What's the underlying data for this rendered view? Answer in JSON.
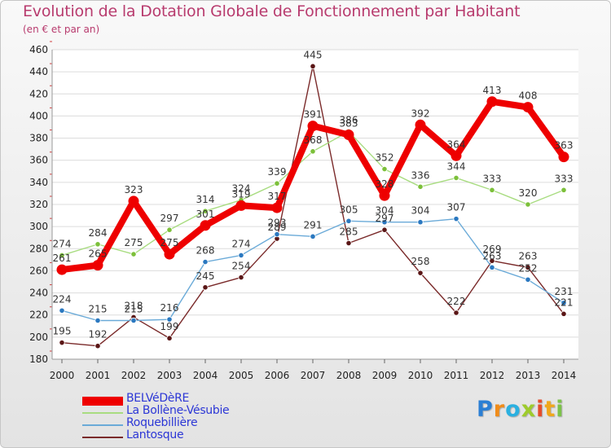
{
  "title": "Evolution de la Dotation Globale de Fonctionnement par Habitant",
  "subtitle": "(en € et par an)",
  "brand": {
    "letters": [
      "P",
      "r",
      "o",
      "x",
      "i",
      "t",
      "i"
    ],
    "colors": [
      "#2b7fd4",
      "#f08c1a",
      "#2bb0e0",
      "#9ecb2c",
      "#e54c2b",
      "#f0a81c",
      "#7cc24a"
    ]
  },
  "chart_data": {
    "type": "line",
    "title": "Evolution de la Dotation Globale de Fonctionnement par Habitant",
    "subtitle": "(en € et par an)",
    "xlabel": "",
    "ylabel": "",
    "ylim": [
      180,
      460
    ],
    "yticks": [
      180,
      200,
      220,
      240,
      260,
      280,
      300,
      320,
      340,
      360,
      380,
      400,
      420,
      440,
      460
    ],
    "grid": "horizontal",
    "categories": [
      "2000",
      "2001",
      "2002",
      "2003",
      "2004",
      "2005",
      "2006",
      "2007",
      "2008",
      "2009",
      "2010",
      "2011",
      "2012",
      "2013",
      "2014"
    ],
    "series": [
      {
        "name": "Lantosque",
        "color": "#7a2a2a",
        "point_color": "#5a1616",
        "values": [
          195,
          192,
          218,
          199,
          245,
          254,
          289,
          445,
          285,
          297,
          258,
          222,
          269,
          263,
          221
        ]
      },
      {
        "name": "Roquebillière",
        "color": "#6aaad8",
        "point_color": "#2a78c0",
        "values": [
          224,
          215,
          215,
          216,
          268,
          274,
          293,
          291,
          305,
          304,
          304,
          307,
          263,
          252,
          231
        ]
      },
      {
        "name": "La Bollène-Vésubie",
        "color": "#a8dc80",
        "point_color": "#7cc03a",
        "values": [
          274,
          284,
          275,
          297,
          314,
          324,
          339,
          368,
          386,
          352,
          336,
          344,
          333,
          320,
          333
        ]
      },
      {
        "name": "BELVéDèRE",
        "color": "#ee0000",
        "point_color": "#ee0000",
        "values": [
          261,
          265,
          323,
          275,
          301,
          319,
          317,
          391,
          383,
          328,
          392,
          364,
          413,
          408,
          363
        ]
      }
    ]
  }
}
